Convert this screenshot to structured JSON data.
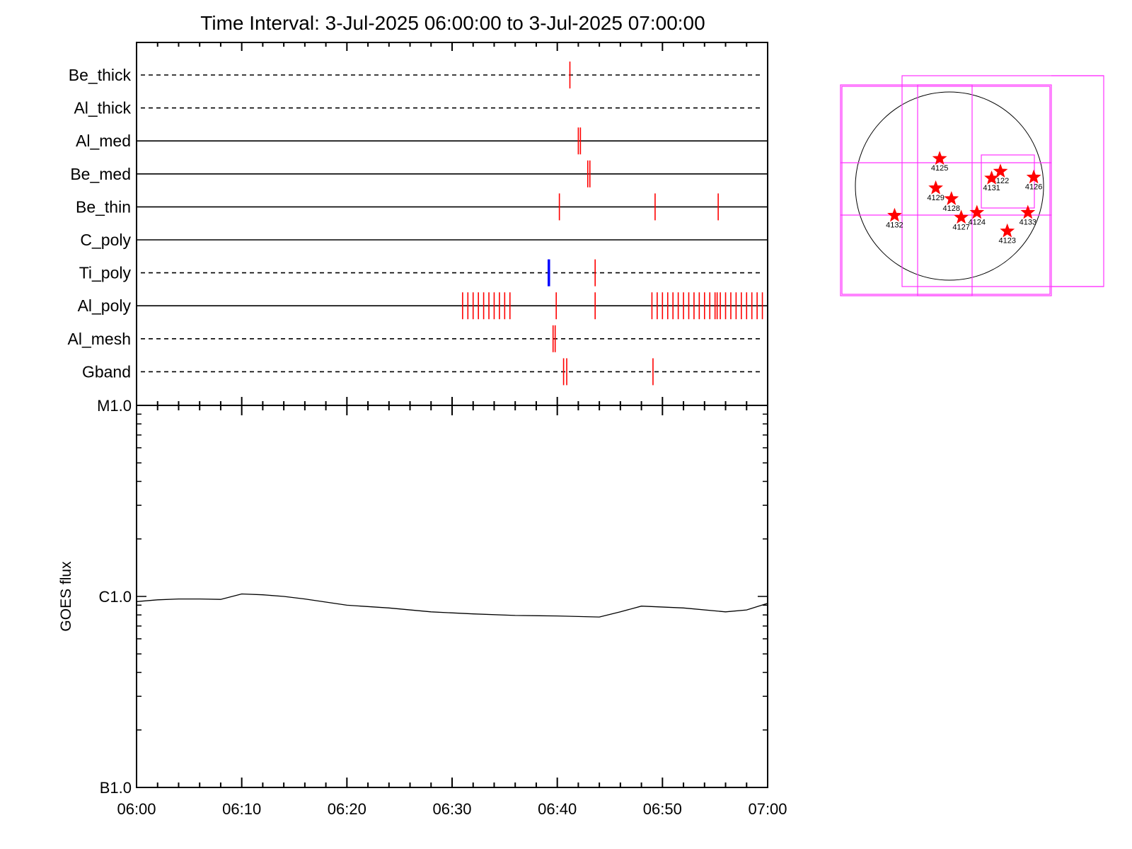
{
  "title": "Time Interval:  3-Jul-2025 06:00:00 to  3-Jul-2025 07:00:00",
  "chart_data": [
    {
      "type": "event-timeline",
      "x_range": [
        "06:00",
        "07:00"
      ],
      "rows": [
        {
          "name": "Be_thick",
          "style": "dashed"
        },
        {
          "name": "Al_thick",
          "style": "dashed"
        },
        {
          "name": "Al_med",
          "style": "solid"
        },
        {
          "name": "Be_med",
          "style": "solid"
        },
        {
          "name": "Be_thin",
          "style": "solid"
        },
        {
          "name": "C_poly",
          "style": "solid"
        },
        {
          "name": "Ti_poly",
          "style": "dashed"
        },
        {
          "name": "Al_poly",
          "style": "solid"
        },
        {
          "name": "Al_mesh",
          "style": "dashed"
        },
        {
          "name": "Gband",
          "style": "dashed"
        }
      ],
      "events": [
        {
          "row": "Be_thick",
          "time": 41.2,
          "color": "#ff0000"
        },
        {
          "row": "Al_med",
          "time": 42.0,
          "color": "#ff0000"
        },
        {
          "row": "Al_med",
          "time": 42.2,
          "color": "#ff0000"
        },
        {
          "row": "Be_med",
          "time": 42.9,
          "color": "#ff0000"
        },
        {
          "row": "Be_med",
          "time": 43.1,
          "color": "#ff0000"
        },
        {
          "row": "Be_thin",
          "time": 40.2,
          "color": "#ff0000"
        },
        {
          "row": "Be_thin",
          "time": 49.3,
          "color": "#ff0000"
        },
        {
          "row": "Be_thin",
          "time": 55.3,
          "color": "#ff0000"
        },
        {
          "row": "Ti_poly",
          "time": 39.2,
          "color": "#0000ff"
        },
        {
          "row": "Ti_poly",
          "time": 43.6,
          "color": "#ff0000"
        },
        {
          "row": "Al_poly",
          "time": 31.0,
          "color": "#ff0000"
        },
        {
          "row": "Al_poly",
          "time": 31.5,
          "color": "#ff0000"
        },
        {
          "row": "Al_poly",
          "time": 32.0,
          "color": "#ff0000"
        },
        {
          "row": "Al_poly",
          "time": 32.5,
          "color": "#ff0000"
        },
        {
          "row": "Al_poly",
          "time": 33.0,
          "color": "#ff0000"
        },
        {
          "row": "Al_poly",
          "time": 33.5,
          "color": "#ff0000"
        },
        {
          "row": "Al_poly",
          "time": 34.0,
          "color": "#ff0000"
        },
        {
          "row": "Al_poly",
          "time": 34.5,
          "color": "#ff0000"
        },
        {
          "row": "Al_poly",
          "time": 35.0,
          "color": "#ff0000"
        },
        {
          "row": "Al_poly",
          "time": 35.5,
          "color": "#ff0000"
        },
        {
          "row": "Al_poly",
          "time": 39.9,
          "color": "#ff0000"
        },
        {
          "row": "Al_poly",
          "time": 43.6,
          "color": "#ff0000"
        },
        {
          "row": "Al_poly",
          "time": 49.0,
          "color": "#ff0000"
        },
        {
          "row": "Al_poly",
          "time": 49.5,
          "color": "#ff0000"
        },
        {
          "row": "Al_poly",
          "time": 50.0,
          "color": "#ff0000"
        },
        {
          "row": "Al_poly",
          "time": 50.5,
          "color": "#ff0000"
        },
        {
          "row": "Al_poly",
          "time": 51.0,
          "color": "#ff0000"
        },
        {
          "row": "Al_poly",
          "time": 51.5,
          "color": "#ff0000"
        },
        {
          "row": "Al_poly",
          "time": 52.0,
          "color": "#ff0000"
        },
        {
          "row": "Al_poly",
          "time": 52.5,
          "color": "#ff0000"
        },
        {
          "row": "Al_poly",
          "time": 53.0,
          "color": "#ff0000"
        },
        {
          "row": "Al_poly",
          "time": 53.5,
          "color": "#ff0000"
        },
        {
          "row": "Al_poly",
          "time": 54.0,
          "color": "#ff0000"
        },
        {
          "row": "Al_poly",
          "time": 54.5,
          "color": "#ff0000"
        },
        {
          "row": "Al_poly",
          "time": 55.0,
          "color": "#ff0000"
        },
        {
          "row": "Al_poly",
          "time": 55.2,
          "color": "#ff0000"
        },
        {
          "row": "Al_poly",
          "time": 55.5,
          "color": "#ff0000"
        },
        {
          "row": "Al_poly",
          "time": 56.0,
          "color": "#ff0000"
        },
        {
          "row": "Al_poly",
          "time": 56.5,
          "color": "#ff0000"
        },
        {
          "row": "Al_poly",
          "time": 57.0,
          "color": "#ff0000"
        },
        {
          "row": "Al_poly",
          "time": 57.5,
          "color": "#ff0000"
        },
        {
          "row": "Al_poly",
          "time": 58.0,
          "color": "#ff0000"
        },
        {
          "row": "Al_poly",
          "time": 58.5,
          "color": "#ff0000"
        },
        {
          "row": "Al_poly",
          "time": 59.0,
          "color": "#ff0000"
        },
        {
          "row": "Al_poly",
          "time": 59.5,
          "color": "#ff0000"
        },
        {
          "row": "Al_mesh",
          "time": 39.6,
          "color": "#ff0000"
        },
        {
          "row": "Al_mesh",
          "time": 39.8,
          "color": "#ff0000"
        },
        {
          "row": "Gband",
          "time": 40.6,
          "color": "#ff0000"
        },
        {
          "row": "Gband",
          "time": 40.9,
          "color": "#ff0000"
        },
        {
          "row": "Gband",
          "time": 49.1,
          "color": "#ff0000"
        }
      ],
      "x_ticks": [
        "06:00",
        "06:10",
        "06:20",
        "06:30",
        "06:40",
        "06:50",
        "07:00"
      ]
    },
    {
      "type": "line",
      "ylabel": "GOES flux",
      "yscale": "log",
      "y_ticks": [
        {
          "label": "B1.0",
          "value": 1e-07
        },
        {
          "label": "C1.0",
          "value": 1e-06
        },
        {
          "label": "M1.0",
          "value": 1e-05
        }
      ],
      "ylim": [
        1e-07,
        1e-05
      ],
      "x_ticks": [
        "06:00",
        "06:10",
        "06:20",
        "06:30",
        "06:40",
        "06:50",
        "07:00"
      ],
      "x_minutes": [
        0,
        2,
        4,
        6,
        8,
        10,
        12,
        14,
        16,
        20,
        24,
        28,
        32,
        36,
        40,
        44,
        46,
        48,
        52,
        56,
        58,
        60
      ],
      "values": [
        9.4e-07,
        9.6e-07,
        9.7e-07,
        9.7e-07,
        9.65e-07,
        1.03e-06,
        1.02e-06,
        1e-06,
        9.7e-07,
        9e-07,
        8.7e-07,
        8.3e-07,
        8.1e-07,
        7.95e-07,
        7.9e-07,
        7.8e-07,
        8.3e-07,
        8.9e-07,
        8.7e-07,
        8.3e-07,
        8.5e-07,
        9.2e-07
      ]
    },
    {
      "type": "scatter",
      "description_of_axes": "solar disk with active regions",
      "points": [
        {
          "label": "4125",
          "x": -100,
          "y": 280,
          "color": "#ff0000"
        },
        {
          "label": "4122",
          "x": 520,
          "y": 150,
          "color": "#ff0000"
        },
        {
          "label": "4131",
          "x": 430,
          "y": 80,
          "color": "#ff0000"
        },
        {
          "label": "4126",
          "x": 860,
          "y": 90,
          "color": "#ff0000"
        },
        {
          "label": "4129",
          "x": -140,
          "y": -20,
          "color": "#ff0000"
        },
        {
          "label": "4128",
          "x": 20,
          "y": -130,
          "color": "#ff0000"
        },
        {
          "label": "4124",
          "x": 280,
          "y": -270,
          "color": "#ff0000"
        },
        {
          "label": "4127",
          "x": 120,
          "y": -320,
          "color": "#ff0000"
        },
        {
          "label": "4133",
          "x": 800,
          "y": -270,
          "color": "#ff0000"
        },
        {
          "label": "4123",
          "x": 590,
          "y": -460,
          "color": "#ff0000"
        },
        {
          "label": "4132",
          "x": -560,
          "y": -300,
          "color": "#ff0000"
        }
      ],
      "disk_radius": 960
    }
  ]
}
